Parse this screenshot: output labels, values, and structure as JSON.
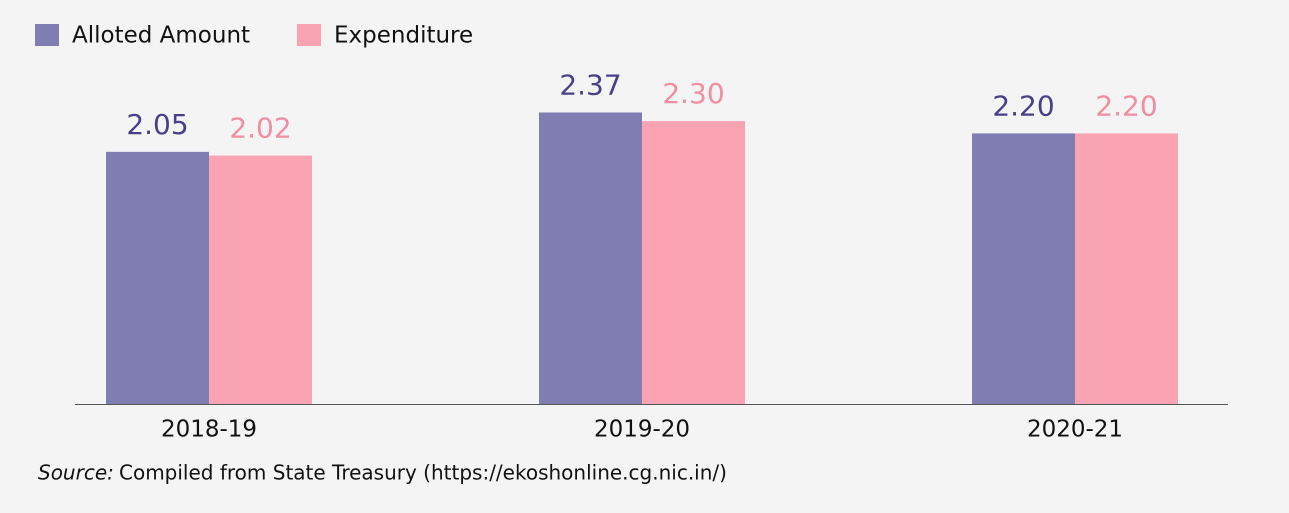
{
  "chart_data": {
    "type": "bar",
    "categories": [
      "2018-19",
      "2019-20",
      "2020-21"
    ],
    "series": [
      {
        "name": "Alloted Amount",
        "color": "#7f7db1",
        "label_color": "#48418a",
        "values": [
          2.05,
          2.37,
          2.2
        ],
        "value_labels": [
          "2.05",
          "2.37",
          "2.20"
        ]
      },
      {
        "name": "Expenditure",
        "color": "#f9a3b3",
        "label_color": "#f08ea2",
        "values": [
          2.02,
          2.3,
          2.2
        ],
        "value_labels": [
          "2.02",
          "2.30",
          "2.20"
        ]
      }
    ],
    "legend": "top-left",
    "source_label": "Source:",
    "source": "Compiled from State Treasury (https://ekoshonline.cg.nic.in/)"
  }
}
